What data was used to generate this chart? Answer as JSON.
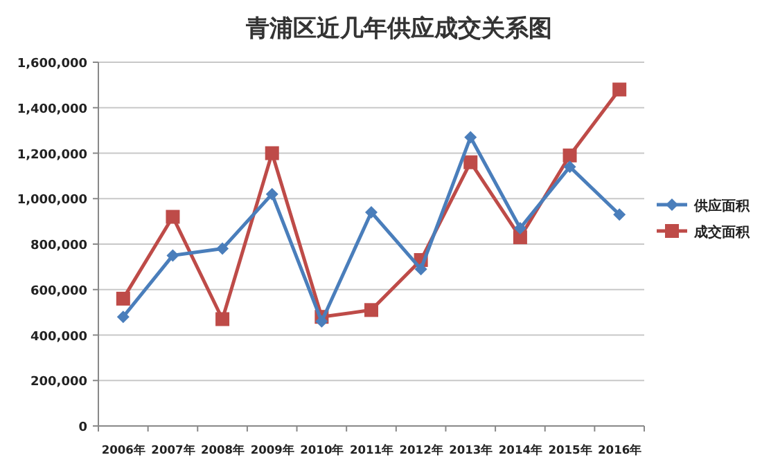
{
  "chart_data": {
    "type": "line",
    "title": "青浦区近几年供应成交关系图",
    "categories": [
      "2006年",
      "2007年",
      "2008年",
      "2009年",
      "2010年",
      "2011年",
      "2012年",
      "2013年",
      "2014年",
      "2015年",
      "2016年"
    ],
    "series": [
      {
        "name": "供应面积",
        "color": "#4a7ebb",
        "marker": "diamond",
        "values": [
          480000,
          750000,
          780000,
          1020000,
          460000,
          940000,
          690000,
          1270000,
          870000,
          1140000,
          930000
        ]
      },
      {
        "name": "成交面积",
        "color": "#be4b48",
        "marker": "square",
        "values": [
          560000,
          920000,
          470000,
          1200000,
          480000,
          510000,
          730000,
          1160000,
          830000,
          1190000,
          1480000
        ]
      }
    ],
    "ylim": [
      0,
      1600000
    ],
    "yticks": [
      0,
      {
        "value": 200000,
        "label": "200,000"
      },
      {
        "value": 400000,
        "label": "400,000"
      },
      {
        "value": 600000,
        "label": "600,000"
      },
      {
        "value": 800000,
        "label": "800,000"
      },
      {
        "value": 1000000,
        "label": "1,000,000"
      },
      {
        "value": 1200000,
        "label": "1,200,000"
      },
      {
        "value": 1400000,
        "label": "1,400,000"
      },
      {
        "value": 1600000,
        "label": "1,600,000"
      }
    ],
    "grid": "y",
    "legend": "right",
    "line_style": "solid"
  }
}
